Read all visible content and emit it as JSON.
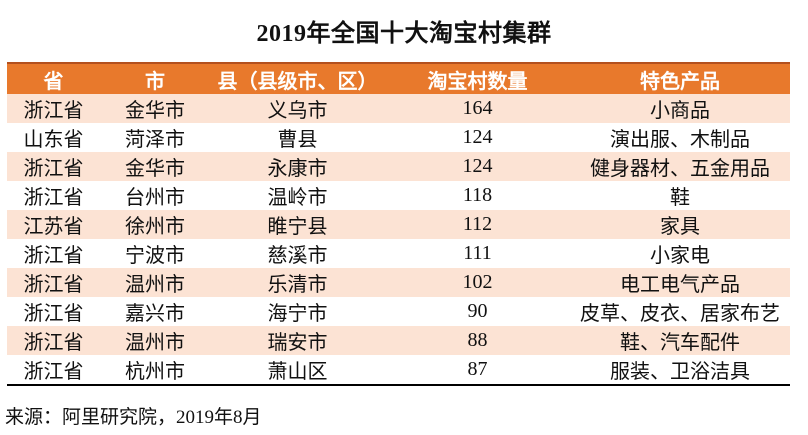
{
  "title": "2019年全国十大淘宝村集群",
  "source_note": "来源：阿里研究院，2019年8月",
  "colors": {
    "header_bg": "#e8792c",
    "header_text": "#ffffff",
    "header_top_border": "#b3501e",
    "stripe_bg": "#fce3d4",
    "row_bg": "#ffffff",
    "bottom_border": "#000000",
    "text_color": "#111111"
  },
  "table": {
    "headers": [
      "省",
      "市",
      "县（县级市、区）",
      "淘宝村数量",
      "特色产品"
    ],
    "rows": [
      [
        "浙江省",
        "金华市",
        "义乌市",
        164,
        "小商品"
      ],
      [
        "山东省",
        "菏泽市",
        "曹县",
        124,
        "演出服、木制品"
      ],
      [
        "浙江省",
        "金华市",
        "永康市",
        124,
        "健身器材、五金用品"
      ],
      [
        "浙江省",
        "台州市",
        "温岭市",
        118,
        "鞋"
      ],
      [
        "江苏省",
        "徐州市",
        "睢宁县",
        112,
        "家具"
      ],
      [
        "浙江省",
        "宁波市",
        "慈溪市",
        111,
        "小家电"
      ],
      [
        "浙江省",
        "温州市",
        "乐清市",
        102,
        "电工电气产品"
      ],
      [
        "浙江省",
        "嘉兴市",
        "海宁市",
        90,
        "皮草、皮衣、居家布艺"
      ],
      [
        "浙江省",
        "温州市",
        "瑞安市",
        88,
        "鞋、汽车配件"
      ],
      [
        "浙江省",
        "杭州市",
        "萧山区",
        87,
        "服装、卫浴洁具"
      ]
    ]
  },
  "chart_data": {
    "type": "table",
    "title": "2019年全国十大淘宝村集群",
    "columns": [
      "省",
      "市",
      "县（县级市、区）",
      "淘宝村数量",
      "特色产品"
    ],
    "rows": [
      {
        "province": "浙江省",
        "city": "金华市",
        "county": "义乌市",
        "taobao_village_count": 164,
        "featured_products": "小商品"
      },
      {
        "province": "山东省",
        "city": "菏泽市",
        "county": "曹县",
        "taobao_village_count": 124,
        "featured_products": "演出服、木制品"
      },
      {
        "province": "浙江省",
        "city": "金华市",
        "county": "永康市",
        "taobao_village_count": 124,
        "featured_products": "健身器材、五金用品"
      },
      {
        "province": "浙江省",
        "city": "台州市",
        "county": "温岭市",
        "taobao_village_count": 118,
        "featured_products": "鞋"
      },
      {
        "province": "江苏省",
        "city": "徐州市",
        "county": "睢宁县",
        "taobao_village_count": 112,
        "featured_products": "家具"
      },
      {
        "province": "浙江省",
        "city": "宁波市",
        "county": "慈溪市",
        "taobao_village_count": 111,
        "featured_products": "小家电"
      },
      {
        "province": "浙江省",
        "city": "温州市",
        "county": "乐清市",
        "taobao_village_count": 102,
        "featured_products": "电工电气产品"
      },
      {
        "province": "浙江省",
        "city": "嘉兴市",
        "county": "海宁市",
        "taobao_village_count": 90,
        "featured_products": "皮草、皮衣、居家布艺"
      },
      {
        "province": "浙江省",
        "city": "温州市",
        "county": "瑞安市",
        "taobao_village_count": 88,
        "featured_products": "鞋、汽车配件"
      },
      {
        "province": "浙江省",
        "city": "杭州市",
        "county": "萧山区",
        "taobao_village_count": 87,
        "featured_products": "服装、卫浴洁具"
      }
    ],
    "source": "来源：阿里研究院，2019年8月"
  }
}
